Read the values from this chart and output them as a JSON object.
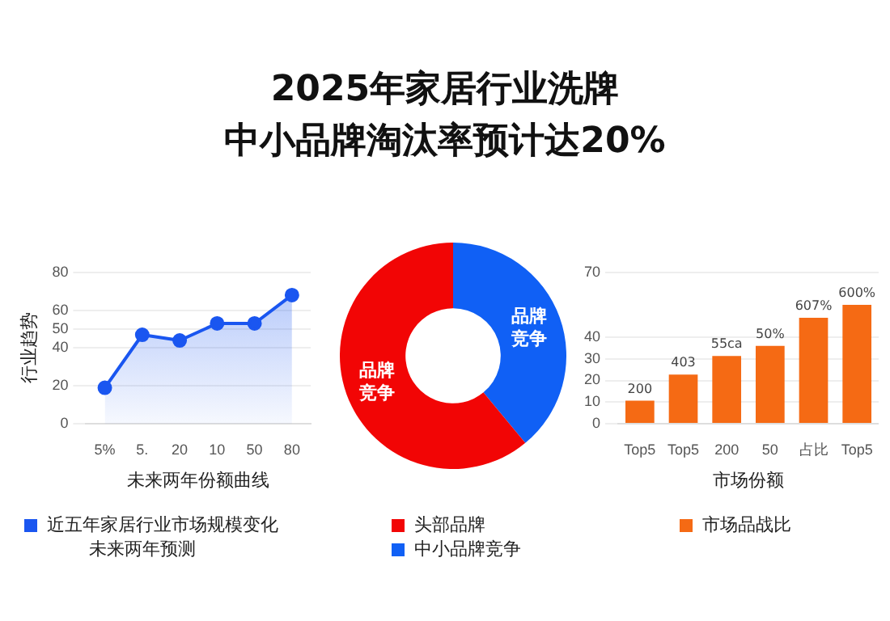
{
  "chart_data": [
    {
      "type": "other",
      "title": "2025年家居行业洗牌",
      "subtitle": "中小品牌淘汰率预计达20%"
    },
    {
      "type": "area",
      "xlabel": "未来两年份额曲线",
      "ylabel": "行业趋势",
      "categories": [
        "5%",
        "5.",
        "20",
        "10",
        "50",
        "80"
      ],
      "series": [
        {
          "name": "近五年家居行业市场规模变化",
          "color": "#1a56f0",
          "values": [
            19,
            47,
            44,
            53,
            53,
            68
          ]
        }
      ],
      "ylim": [
        0,
        80
      ],
      "yticks": [
        0,
        20,
        40,
        50,
        60,
        80
      ],
      "annotations": [
        "未来两年预测"
      ],
      "grid": "y",
      "legend": "bottom",
      "marker": "circle"
    },
    {
      "type": "donut",
      "categories": [
        "中小品牌竞争",
        "头部品牌"
      ],
      "values": [
        39,
        61
      ],
      "colors": [
        "#1060f5",
        "#f20505"
      ],
      "value_labels": [
        "品牌竞争",
        "品牌竞争"
      ],
      "legend": "bottom"
    },
    {
      "type": "bar",
      "xlabel": "市场份额",
      "categories": [
        "Top5",
        "Top5",
        "200",
        "50",
        "占比",
        "Top5"
      ],
      "series": [
        {
          "name": "市场品战比",
          "color": "#f56a14",
          "values": [
            10.7,
            22.7,
            31.3,
            36,
            49,
            55
          ]
        }
      ],
      "value_labels": [
        "200",
        "403",
        "55ca",
        "50%",
        "607%",
        "600%"
      ],
      "ylim": [
        0,
        70
      ],
      "yticks": [
        0,
        10,
        20,
        30,
        40,
        70
      ],
      "grid": "y",
      "legend": "bottom"
    }
  ]
}
